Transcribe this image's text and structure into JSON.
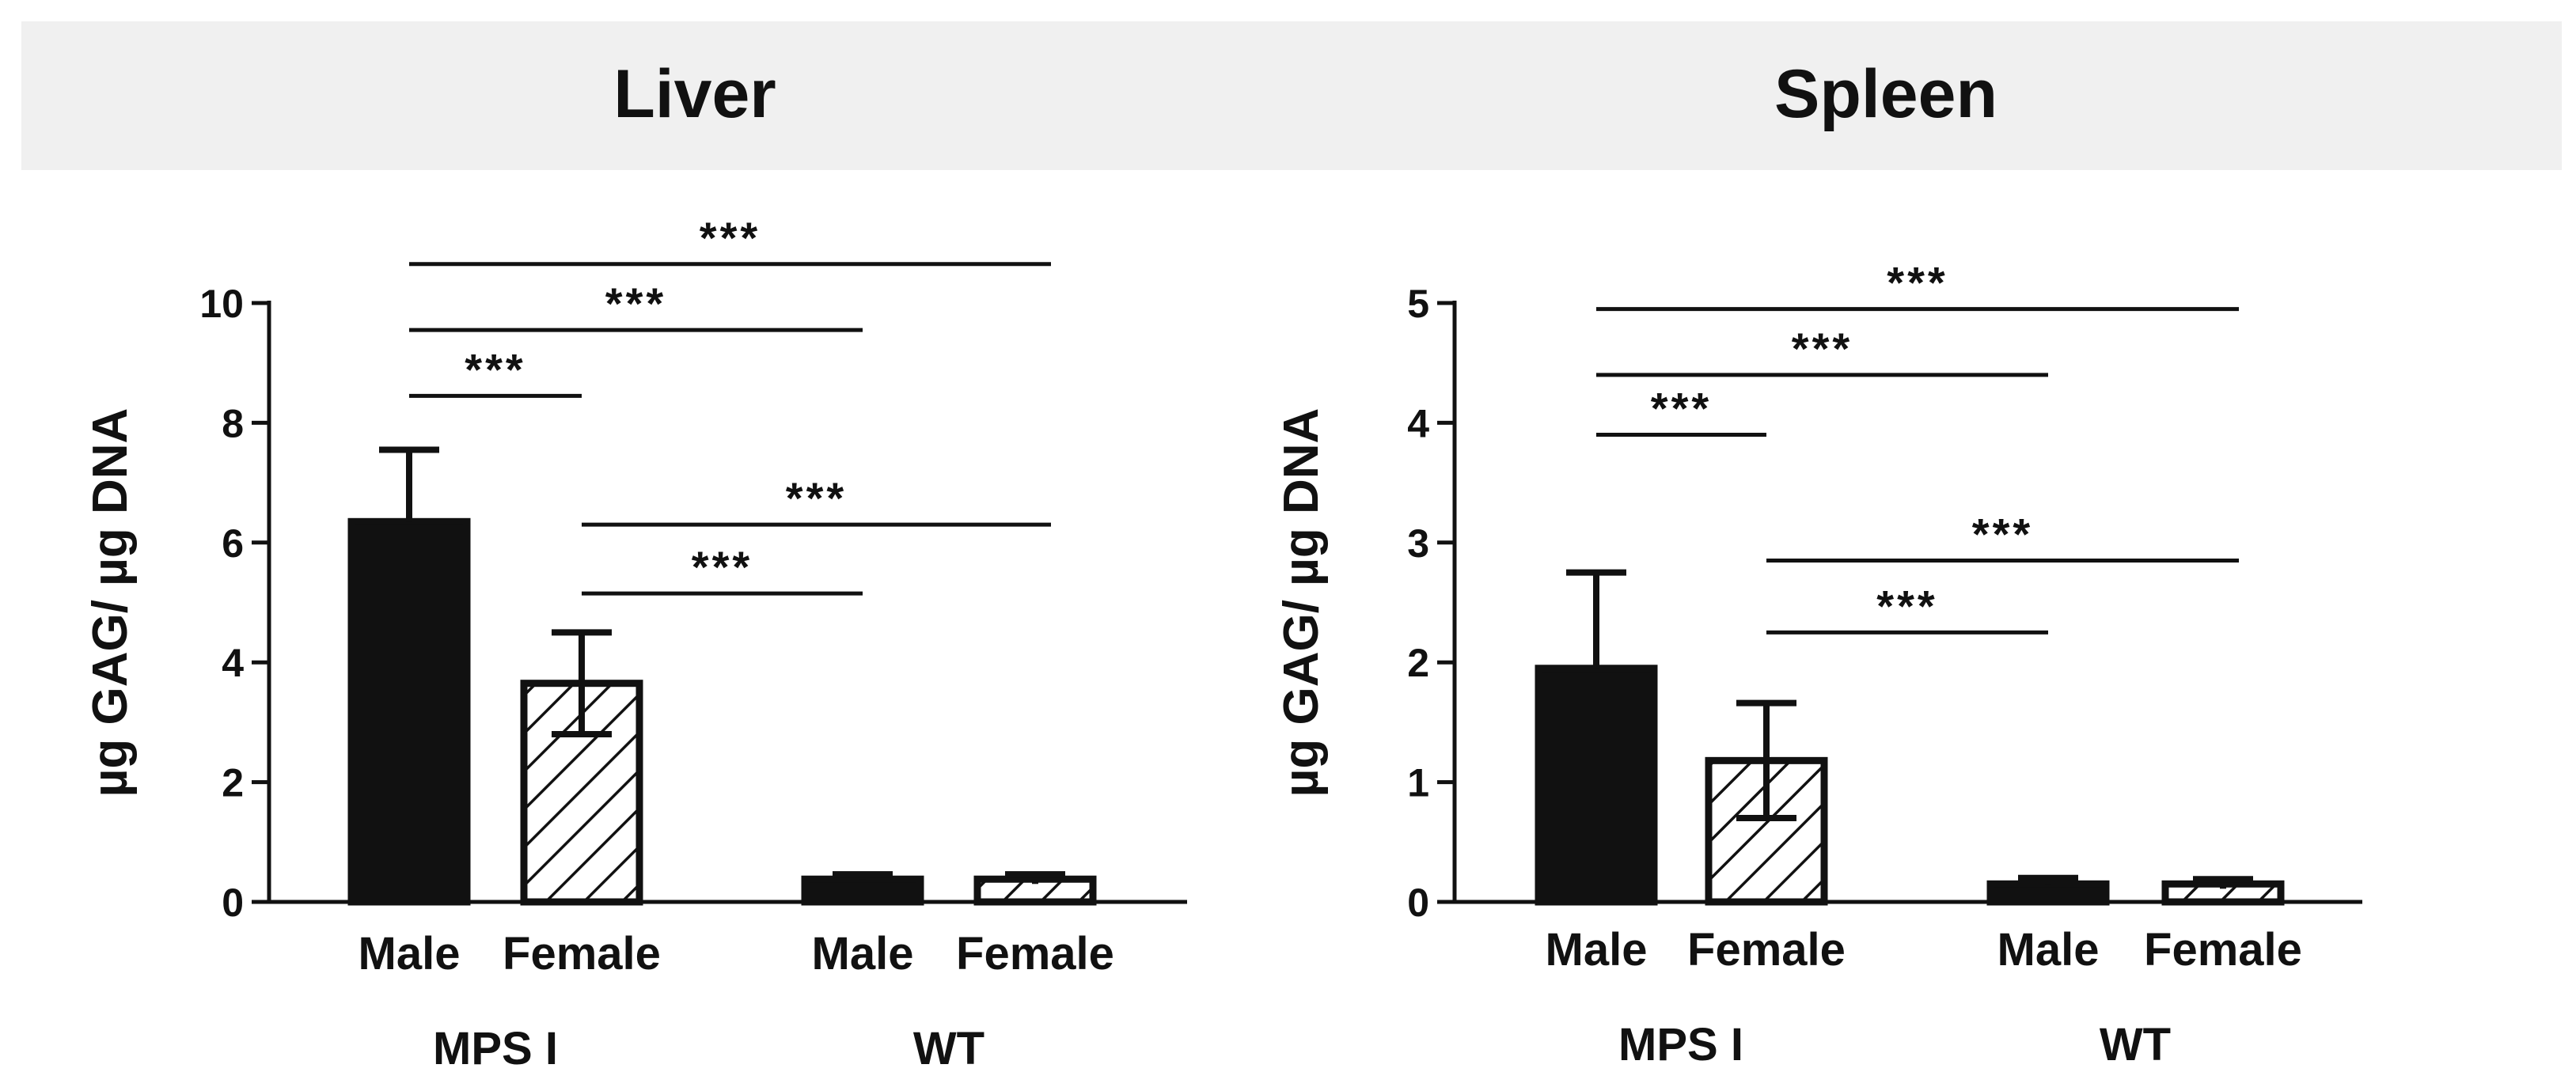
{
  "figure": {
    "panel_titles": [
      "Liver",
      "Spleen"
    ]
  },
  "chart_data": [
    {
      "type": "bar",
      "title": "Liver",
      "ylabel": "µg GAG/ µg DNA",
      "xlabel": "",
      "ylim": [
        0,
        10
      ],
      "yticks": [
        0,
        2,
        4,
        6,
        8,
        10
      ],
      "groups": [
        "MPS I",
        "WT"
      ],
      "categories": [
        "Male",
        "Female",
        "Male",
        "Female"
      ],
      "category_group": [
        0,
        0,
        1,
        1
      ],
      "values": [
        6.35,
        3.65,
        0.38,
        0.38
      ],
      "errors": [
        1.2,
        0.85,
        0.08,
        0.08
      ],
      "hatched": [
        false,
        true,
        false,
        true
      ],
      "significance": [
        {
          "from": 0,
          "to": 3,
          "label": "***",
          "y": 10.65
        },
        {
          "from": 0,
          "to": 2,
          "label": "***",
          "y": 9.55
        },
        {
          "from": 0,
          "to": 1,
          "label": "***",
          "y": 8.45
        },
        {
          "from": 1,
          "to": 3,
          "label": "***",
          "y": 6.3
        },
        {
          "from": 1,
          "to": 2,
          "label": "***",
          "y": 5.15
        }
      ]
    },
    {
      "type": "bar",
      "title": "Spleen",
      "ylabel": "µg GAG/ µg DNA",
      "xlabel": "",
      "ylim": [
        0,
        5
      ],
      "yticks": [
        0,
        1,
        2,
        3,
        4,
        5
      ],
      "groups": [
        "MPS I",
        "WT"
      ],
      "categories": [
        "Male",
        "Female",
        "Male",
        "Female"
      ],
      "category_group": [
        0,
        0,
        1,
        1
      ],
      "values": [
        1.95,
        1.18,
        0.15,
        0.15
      ],
      "errors": [
        0.8,
        0.48,
        0.05,
        0.04
      ],
      "hatched": [
        false,
        true,
        false,
        true
      ],
      "significance": [
        {
          "from": 0,
          "to": 3,
          "label": "***",
          "y": 4.95
        },
        {
          "from": 0,
          "to": 2,
          "label": "***",
          "y": 4.4
        },
        {
          "from": 0,
          "to": 1,
          "label": "***",
          "y": 3.9
        },
        {
          "from": 1,
          "to": 3,
          "label": "***",
          "y": 2.85
        },
        {
          "from": 1,
          "to": 2,
          "label": "***",
          "y": 2.25
        }
      ]
    }
  ]
}
